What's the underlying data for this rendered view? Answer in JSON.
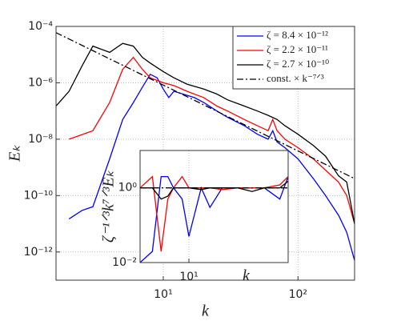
{
  "chart_data": [
    {
      "type": "line",
      "xscale": "log",
      "yscale": "log",
      "grid": true,
      "legend": "upper right",
      "xlabel": "k",
      "ylabel": "Eₖ",
      "xlim": [
        1.6,
        263
      ],
      "ylim": [
        1e-13,
        0.0001
      ],
      "xticks": [
        {
          "value": 10,
          "label": "10¹"
        },
        {
          "value": 100,
          "label": "10²"
        }
      ],
      "yticks": [
        {
          "value": 1e-12,
          "label": "10⁻¹²"
        },
        {
          "value": 1e-10,
          "label": "10⁻¹⁰"
        },
        {
          "value": 1e-08,
          "label": "10⁻⁸"
        },
        {
          "value": 1e-06,
          "label": "10⁻⁶"
        },
        {
          "value": 0.0001,
          "label": "10⁻⁴"
        }
      ],
      "series": [
        {
          "name": "ζ = 8.4 × 10⁻¹²",
          "color": "#0000ff",
          "linestyle": "solid",
          "x": [
            2,
            2.5,
            3,
            4,
            5,
            6,
            7,
            8,
            9,
            10,
            11,
            12,
            14,
            17,
            20,
            25,
            30,
            40,
            50,
            60,
            65,
            70,
            80,
            100,
            130,
            160,
            200,
            230,
            263
          ],
          "values": [
            1.5e-11,
            3e-11,
            4e-11,
            2e-09,
            5e-08,
            2e-07,
            7e-07,
            2e-06,
            1.5e-06,
            6e-07,
            3e-07,
            5e-07,
            4e-07,
            3e-07,
            2e-07,
            1e-07,
            6e-08,
            3e-08,
            1.5e-08,
            1e-08,
            2e-08,
            8e-09,
            5e-09,
            2e-09,
            4e-10,
            1e-10,
            2e-11,
            5e-12,
            5e-13
          ]
        },
        {
          "name": "ζ = 2.2 × 10⁻¹¹",
          "color": "#ff0000",
          "linestyle": "solid",
          "x": [
            2,
            3,
            4,
            5,
            6,
            7,
            8,
            10,
            12,
            15,
            20,
            25,
            30,
            40,
            50,
            60,
            65,
            70,
            80,
            100,
            130,
            160,
            200,
            230,
            263
          ],
          "values": [
            1e-08,
            2e-08,
            2e-07,
            3e-06,
            8e-06,
            3e-06,
            1.5e-06,
            1e-06,
            8e-07,
            5e-07,
            3e-07,
            1.5e-07,
            1e-07,
            5e-08,
            3e-08,
            2e-08,
            5e-08,
            2e-08,
            1e-08,
            5e-09,
            2e-09,
            8e-10,
            3e-10,
            1e-10,
            1e-11
          ]
        },
        {
          "name": "ζ = 2.7 × 10⁻¹⁰",
          "color": "#000000",
          "linestyle": "solid",
          "x": [
            1.6,
            2,
            2.5,
            3,
            4,
            5,
            6,
            7,
            8,
            10,
            12,
            15,
            20,
            25,
            30,
            40,
            50,
            60,
            70,
            80,
            100,
            130,
            160,
            200,
            230,
            263
          ],
          "values": [
            1.5e-07,
            5e-07,
            4e-06,
            2e-05,
            1.2e-05,
            2.5e-05,
            2e-05,
            8e-06,
            5e-06,
            2.5e-06,
            1.5e-06,
            9e-07,
            6e-07,
            4e-07,
            2.5e-07,
            1.5e-07,
            1e-07,
            7e-08,
            5e-08,
            3e-08,
            1.5e-08,
            6e-09,
            2.5e-09,
            5e-10,
            3e-10,
            1e-11
          ]
        },
        {
          "name": "const. × k⁻⁷ᐟ³",
          "color": "#000000",
          "linestyle": "dashdot",
          "x": [
            1.6,
            263
          ],
          "values": [
            6e-05,
            4e-10
          ]
        }
      ]
    },
    {
      "type": "line",
      "xscale": "log",
      "yscale": "log",
      "grid": true,
      "xlabel": "k",
      "ylabel": "ζ⁻¹ᐟ³k⁷ᐟ³Eₖ",
      "xlim": [
        2,
        263
      ],
      "ylim": [
        0.01,
        10
      ],
      "xticks": [
        {
          "value": 10,
          "label": "10¹"
        }
      ],
      "yticks": [
        {
          "value": 0.01,
          "label": "10⁻²"
        },
        {
          "value": 1,
          "label": "10⁰"
        }
      ],
      "series": [
        {
          "color": "#0000ff",
          "linestyle": "solid",
          "x": [
            2,
            3,
            4,
            5,
            6,
            8,
            10,
            15,
            20,
            30,
            50,
            80,
            120,
            200,
            263
          ],
          "values": [
            0.01,
            0.02,
            2,
            2,
            1,
            0.5,
            0.05,
            1,
            0.3,
            1,
            1,
            1,
            1,
            0.5,
            2
          ]
        },
        {
          "color": "#ff0000",
          "linestyle": "solid",
          "x": [
            2,
            3,
            4,
            5,
            6,
            8,
            10,
            15,
            20,
            30,
            50,
            80,
            120,
            200,
            263
          ],
          "values": [
            1,
            2,
            0.02,
            0.5,
            1,
            2,
            1,
            1,
            1,
            0.9,
            1,
            1,
            1,
            1.2,
            2
          ]
        },
        {
          "color": "#000000",
          "linestyle": "solid",
          "x": [
            2,
            3,
            4,
            5,
            6,
            8,
            10,
            15,
            20,
            30,
            50,
            80,
            120,
            200,
            263
          ],
          "values": [
            1,
            1,
            0.5,
            0.6,
            1,
            1,
            1,
            0.9,
            1,
            1,
            1,
            0.8,
            1,
            1,
            1.5
          ]
        },
        {
          "color": "#000000",
          "linestyle": "dashdot",
          "x": [
            2,
            263
          ],
          "values": [
            1,
            1
          ]
        }
      ]
    }
  ]
}
